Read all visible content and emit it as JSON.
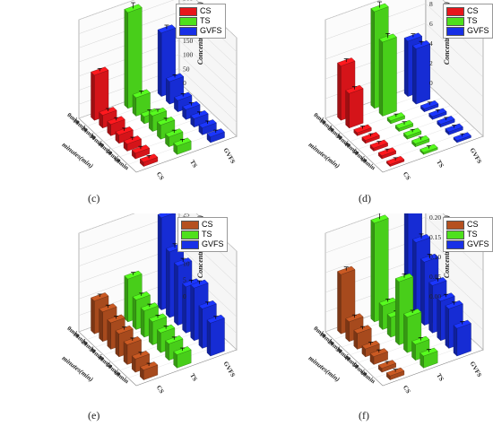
{
  "colors": {
    "CS": "#e8161b",
    "TS": "#4ee01c",
    "GVFS": "#1830e6",
    "CS_ef": "#b5501f"
  },
  "chart_data": [
    {
      "type": "bar",
      "panel": "c",
      "caption": "(c)",
      "zlabel": "Concentration(mg/L)",
      "ylabel": "minutes(min)",
      "categories": [
        "0min",
        "10min",
        "20min",
        "30min",
        "40min",
        "50min",
        "60min"
      ],
      "groups": [
        "CS",
        "TS",
        "GVFS"
      ],
      "zlim": [
        0,
        350
      ],
      "zticks": [
        "0",
        "50",
        "100",
        "150",
        "200",
        "250",
        "300",
        "350"
      ],
      "series": [
        {
          "name": "CS",
          "values": [
            160,
            45,
            40,
            30,
            25,
            20,
            15
          ]
        },
        {
          "name": "TS",
          "values": [
            340,
            65,
            25,
            55,
            50,
            35,
            30
          ]
        },
        {
          "name": "GVFS",
          "values": [
            225,
            80,
            40,
            35,
            30,
            25,
            20
          ]
        }
      ]
    },
    {
      "type": "bar",
      "panel": "d",
      "caption": "(d)",
      "zlabel": "Concentration(mg/L)",
      "ylabel": "minutes(min)",
      "categories": [
        "0min",
        "10min",
        "20min",
        "30min",
        "40min",
        "50min",
        "60min"
      ],
      "groups": [
        "CS",
        "TS",
        "GVFS"
      ],
      "zlim": [
        0,
        10
      ],
      "zticks": [
        "0",
        "2",
        "4",
        "6",
        "8",
        "10"
      ],
      "series": [
        {
          "name": "CS",
          "values": [
            5.5,
            3.5,
            0.3,
            0.3,
            0.3,
            0.3,
            0.2
          ]
        },
        {
          "name": "TS",
          "values": [
            9.8,
            7.5,
            0.3,
            0.3,
            0.3,
            0.3,
            0.2
          ]
        },
        {
          "name": "GVFS",
          "values": [
            5.6,
            5.6,
            0.3,
            0.3,
            0.3,
            0.3,
            0.2
          ]
        }
      ]
    },
    {
      "type": "bar",
      "panel": "e",
      "caption": "(e)",
      "zlabel": "Concentration(mg/L)",
      "ylabel": "minutes(min)",
      "categories": [
        "0min",
        "10min",
        "20min",
        "30min",
        "40min",
        "50min",
        "60min"
      ],
      "groups": [
        "CS",
        "TS",
        "GVFS"
      ],
      "zlim": [
        0,
        30
      ],
      "zticks": [
        "0",
        "5",
        "10",
        "15",
        "20",
        "25",
        "30"
      ],
      "series": [
        {
          "name": "CS",
          "values": [
            10,
            9,
            8,
            7,
            6,
            4,
            3
          ]
        },
        {
          "name": "TS",
          "values": [
            13,
            9,
            8,
            7,
            6,
            5,
            4
          ]
        },
        {
          "name": "GVFS",
          "values": [
            28,
            20,
            18,
            14,
            16,
            12,
            10
          ]
        }
      ]
    },
    {
      "type": "bar",
      "panel": "f",
      "caption": "(f)",
      "zlabel": "Concentration(mg/L)",
      "ylabel": "minutes(min)",
      "categories": [
        "0min",
        "10min",
        "20min",
        "30min",
        "40min",
        "50min",
        "60min"
      ],
      "groups": [
        "CS",
        "TS",
        "GVFS"
      ],
      "zlim": [
        0,
        0.25
      ],
      "zticks": [
        "0.00",
        "0.05",
        "0.10",
        "0.15",
        "0.20",
        "0.25"
      ],
      "series": [
        {
          "name": "CS",
          "values": [
            0.15,
            0.05,
            0.04,
            0.02,
            0.02,
            0.01,
            0.01
          ]
        },
        {
          "name": "TS",
          "values": [
            0.25,
            0.06,
            0.05,
            0.16,
            0.09,
            0.04,
            0.03
          ]
        },
        {
          "name": "GVFS",
          "values": [
            0.26,
            0.19,
            0.16,
            0.12,
            0.1,
            0.1,
            0.07
          ]
        }
      ]
    }
  ]
}
